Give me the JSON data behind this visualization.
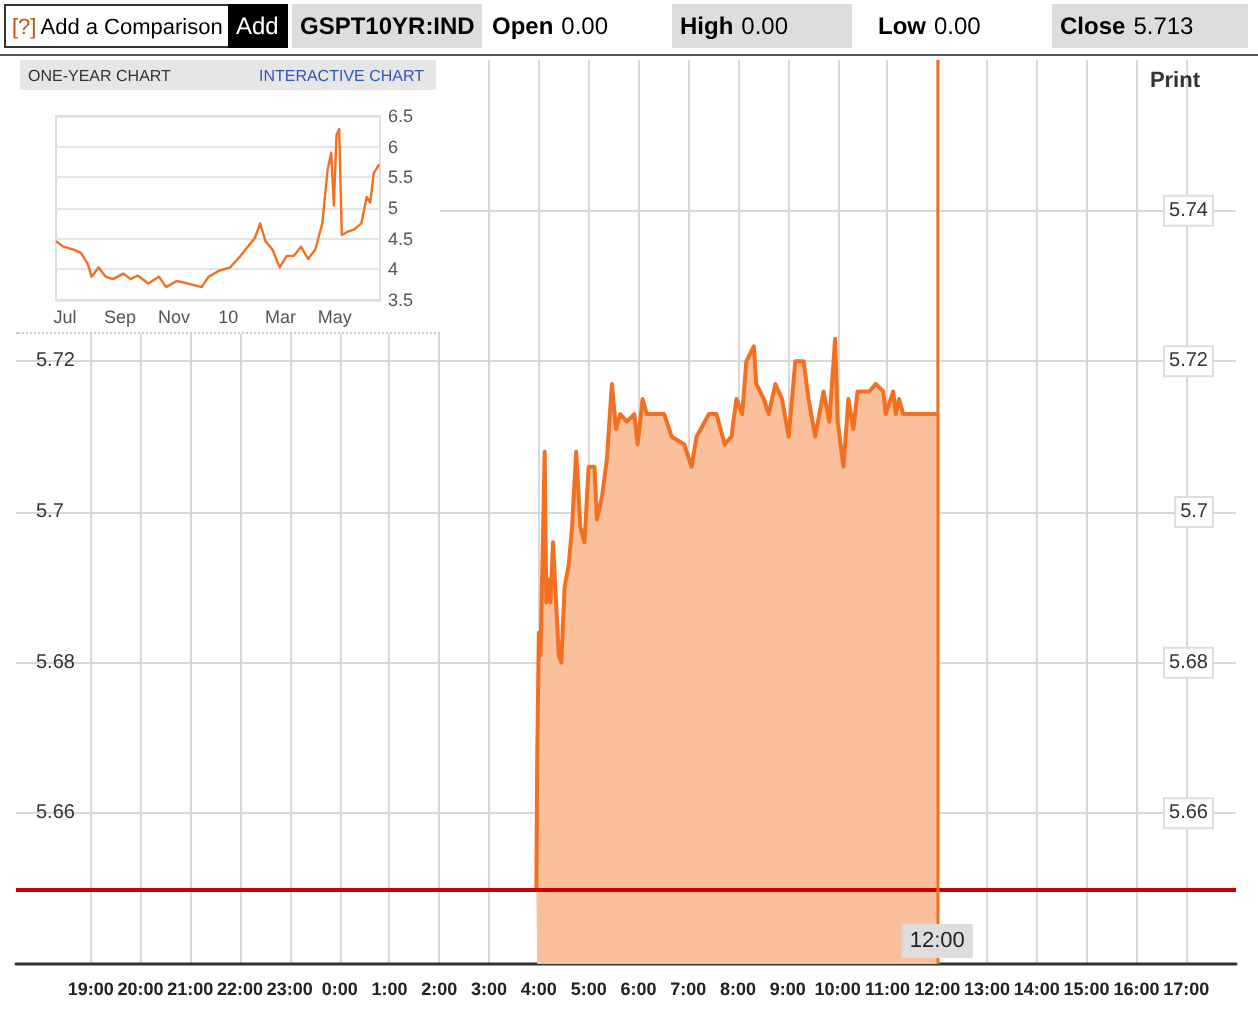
{
  "chart_data": [
    {
      "type": "other",
      "annotations": [
        "[?]",
        "Add a Comparison",
        "Add",
        "GSPT10YR:IND",
        "Open",
        "0.00",
        "High",
        "0.00",
        "Low",
        "0.00",
        "Close",
        "5.713"
      ]
    },
    {
      "type": "area",
      "color": "#f37021",
      "x": [
        "--06-21T03:57",
        "--06-21T03:58",
        "--06-21T04:00",
        "--06-21T04:02",
        "--06-21T04:07",
        "--06-21T04:09",
        "--06-21T04:11",
        "--06-21T04:14",
        "--06-21T04:17",
        "--06-21T04:24",
        "--06-21T04:27",
        "--06-21T04:31",
        "--06-21T04:36",
        "--06-21T04:40",
        "--06-21T04:45",
        "--06-21T04:50",
        "--06-21T04:55",
        "--06-21T05:00",
        "--06-21T05:07",
        "--06-21T05:10",
        "--06-21T05:16",
        "--06-21T05:22",
        "--06-21T05:28",
        "--06-21T05:33",
        "--06-21T05:38",
        "--06-21T05:46",
        "--06-21T05:55",
        "--06-21T05:59",
        "--06-21T06:05",
        "--06-21T06:10",
        "--06-21T06:22",
        "--06-21T06:31",
        "--06-21T06:40",
        "--06-21T06:55",
        "--06-21T07:04",
        "--06-21T07:10",
        "--06-21T07:25",
        "--06-21T07:34",
        "--06-21T07:44",
        "--06-21T07:52",
        "--06-21T07:58",
        "--06-21T08:05",
        "--06-21T08:10",
        "--06-21T08:19",
        "--06-21T08:22",
        "--06-21T08:31",
        "--06-21T08:37",
        "--06-21T08:45",
        "--06-21T08:53",
        "--06-21T09:01",
        "--06-21T09:09",
        "--06-21T09:19",
        "--06-21T09:25",
        "--06-21T09:33",
        "--06-21T09:43",
        "--06-21T09:50",
        "--06-21T09:57",
        "--06-21T10:00",
        "--06-21T10:07",
        "--06-21T10:13",
        "--06-21T10:19",
        "--06-21T10:24",
        "--06-21T10:38",
        "--06-21T10:46",
        "--06-21T10:55",
        "--06-21T10:58",
        "--06-21T11:07",
        "--06-21T11:10",
        "--06-21T11:14",
        "--06-21T11:19",
        "--06-21T12:00"
      ],
      "values": [
        5.65,
        5.667,
        5.684,
        5.681,
        5.708,
        5.688,
        5.691,
        5.688,
        5.696,
        5.681,
        5.68,
        5.69,
        5.693,
        5.698,
        5.708,
        5.698,
        5.696,
        5.706,
        5.706,
        5.699,
        5.702,
        5.707,
        5.717,
        5.711,
        5.713,
        5.712,
        5.713,
        5.709,
        5.715,
        5.713,
        5.713,
        5.713,
        5.71,
        5.709,
        5.706,
        5.71,
        5.713,
        5.713,
        5.709,
        5.71,
        5.715,
        5.713,
        5.72,
        5.722,
        5.717,
        5.715,
        5.713,
        5.717,
        5.715,
        5.71,
        5.72,
        5.72,
        5.715,
        5.71,
        5.716,
        5.712,
        5.723,
        5.712,
        5.706,
        5.715,
        5.711,
        5.716,
        5.716,
        5.717,
        5.716,
        5.713,
        5.716,
        5.713,
        5.715,
        5.713,
        5.713
      ],
      "xlim": [
        "--06-20T17:30",
        "--06-21T18:00"
      ],
      "xticks": [
        {
          "value": "--06-20T19:00",
          "label": "19:00"
        },
        {
          "value": "--06-20T20:00",
          "label": "20:00"
        },
        {
          "value": "--06-20T21:00",
          "label": "21:00"
        },
        {
          "value": "--06-20T22:00",
          "label": "22:00"
        },
        {
          "value": "--06-20T23:00",
          "label": "23:00"
        },
        {
          "value": "--06-21T00:00",
          "label": "0:00"
        },
        {
          "value": "--06-21T01:00",
          "label": "1:00"
        },
        {
          "value": "--06-21T02:00",
          "label": "2:00"
        },
        {
          "value": "--06-21T03:00",
          "label": "3:00"
        },
        {
          "value": "--06-21T04:00",
          "label": "4:00"
        },
        {
          "value": "--06-21T05:00",
          "label": "5:00"
        },
        {
          "value": "--06-21T06:00",
          "label": "6:00"
        },
        {
          "value": "--06-21T07:00",
          "label": "7:00"
        },
        {
          "value": "--06-21T08:00",
          "label": "8:00"
        },
        {
          "value": "--06-21T09:00",
          "label": "9:00"
        },
        {
          "value": "--06-21T10:00",
          "label": "10:00"
        },
        {
          "value": "--06-21T11:00",
          "label": "11:00"
        },
        {
          "value": "--06-21T12:00",
          "label": "12:00"
        },
        {
          "value": "--06-21T13:00",
          "label": "13:00"
        },
        {
          "value": "--06-21T14:00",
          "label": "14:00"
        },
        {
          "value": "--06-21T15:00",
          "label": "15:00"
        },
        {
          "value": "--06-21T16:00",
          "label": "16:00"
        },
        {
          "value": "--06-21T17:00",
          "label": "17:00"
        }
      ],
      "ylim": [
        5.64,
        5.76
      ],
      "yticks": [
        5.66,
        5.68,
        5.7,
        5.72
      ],
      "y2lim": [
        5.64,
        5.76
      ],
      "y2ticks": [
        5.66,
        5.68,
        5.7,
        5.72,
        5.74
      ],
      "y2label": "Print",
      "grid": true,
      "ref_lines": [
        {
          "axis": "y",
          "value": 5.65,
          "color": "#cc0000"
        },
        {
          "axis": "x",
          "value": "--06-21T12:00",
          "label": "12:00",
          "color": "#f37021"
        }
      ]
    },
    {
      "type": "line",
      "title": "ONE-YEAR CHART",
      "annotations": [
        "INTERACTIVE CHART"
      ],
      "color": "#f37021",
      "x": [
        "2009-06-21",
        "2009-06-29",
        "2009-07-11",
        "2009-07-19",
        "2009-07-27",
        "2009-07-31",
        "2009-08-08",
        "2009-08-16",
        "2009-08-24",
        "2009-09-05",
        "2009-09-13",
        "2009-09-21",
        "2009-10-03",
        "2009-10-15",
        "2009-10-23",
        "2009-11-04",
        "2009-11-16",
        "2009-12-02",
        "2009-12-10",
        "2009-12-22",
        "2010-01-03",
        "2010-01-15",
        "2010-01-23",
        "2010-01-31",
        "2010-02-06",
        "2010-02-12",
        "2010-02-20",
        "2010-02-28",
        "2010-03-08",
        "2010-03-16",
        "2010-03-24",
        "2010-04-01",
        "2010-04-09",
        "2010-04-17",
        "2010-04-23",
        "2010-04-27",
        "2010-04-30",
        "2010-05-03",
        "2010-05-06",
        "2010-05-09",
        "2010-05-15",
        "2010-05-23",
        "2010-05-31",
        "2010-06-06",
        "2010-06-10",
        "2010-06-14",
        "2010-06-20"
      ],
      "values": [
        4.46,
        4.37,
        4.32,
        4.27,
        4.08,
        3.88,
        4.03,
        3.88,
        3.84,
        3.93,
        3.84,
        3.9,
        3.77,
        3.88,
        3.71,
        3.81,
        3.77,
        3.71,
        3.88,
        3.98,
        4.03,
        4.22,
        4.37,
        4.51,
        4.75,
        4.46,
        4.32,
        4.03,
        4.22,
        4.22,
        4.37,
        4.17,
        4.32,
        4.75,
        5.62,
        5.9,
        5.04,
        6.19,
        6.29,
        4.56,
        4.61,
        4.65,
        4.75,
        5.18,
        5.09,
        5.57,
        5.71
      ],
      "xlim": [
        "2009-06-21",
        "2010-06-21"
      ],
      "xticks": [
        {
          "value": "2009-07-01",
          "label": "Jul"
        },
        {
          "value": "2009-09-01",
          "label": "Sep"
        },
        {
          "value": "2009-11-01",
          "label": "Nov"
        },
        {
          "value": "2010-01-01",
          "label": "10"
        },
        {
          "value": "2010-03-01",
          "label": "Mar"
        },
        {
          "value": "2010-05-01",
          "label": "May"
        }
      ],
      "ylim": [
        3.5,
        6.5
      ],
      "yticks": [
        3.5,
        4,
        4.5,
        5,
        5.5,
        6,
        6.5
      ],
      "grid": "y"
    }
  ]
}
